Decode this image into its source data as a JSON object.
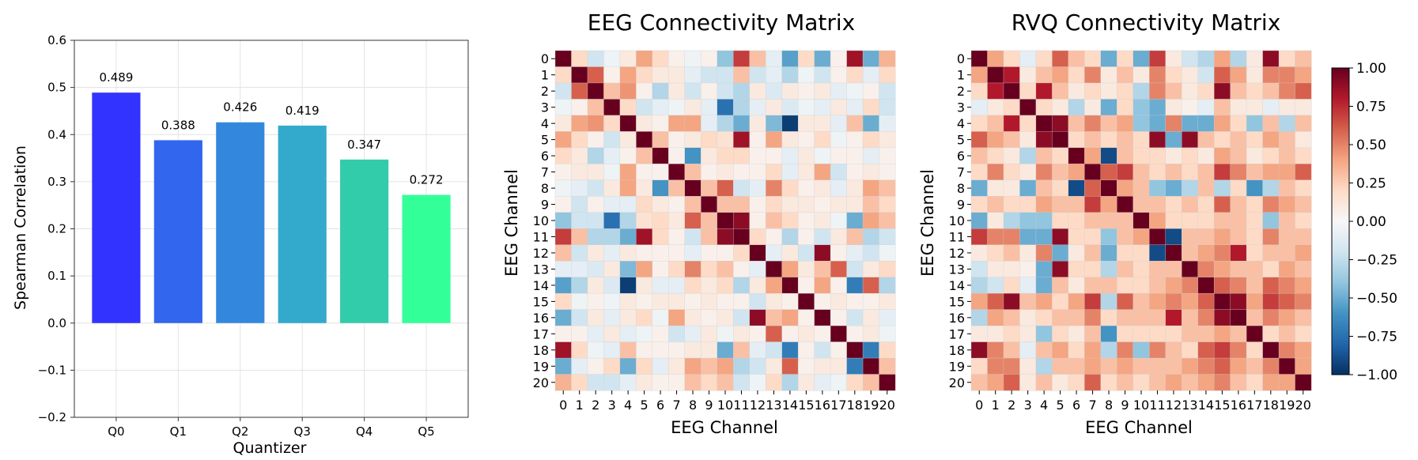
{
  "chart_data": [
    {
      "type": "bar",
      "title": "",
      "xlabel": "Quantizer",
      "ylabel": "Spearman Correlation",
      "categories": [
        "Q0",
        "Q1",
        "Q2",
        "Q3",
        "Q4",
        "Q5"
      ],
      "values": [
        0.489,
        0.388,
        0.426,
        0.419,
        0.347,
        0.272
      ],
      "value_labels": [
        "0.489",
        "0.388",
        "0.426",
        "0.419",
        "0.347",
        "0.272"
      ],
      "colors": [
        "#3333ff",
        "#3366ee",
        "#3388dd",
        "#33aacc",
        "#33ccaa",
        "#33ff99"
      ],
      "ylim": [
        -0.2,
        0.6
      ],
      "yticks": [
        -0.2,
        -0.1,
        0.0,
        0.1,
        0.2,
        0.3,
        0.4,
        0.5,
        0.6
      ],
      "ytick_labels": [
        "−0.2",
        "−0.1",
        "0.0",
        "0.1",
        "0.2",
        "0.3",
        "0.4",
        "0.5",
        "0.6"
      ],
      "grid": true
    },
    {
      "type": "heatmap",
      "title": "EEG Connectivity Matrix",
      "xlabel": "EEG Channel",
      "ylabel": "EEG Channel",
      "tick_labels": [
        "0",
        "1",
        "2",
        "3",
        "4",
        "5",
        "6",
        "7",
        "8",
        "9",
        "10",
        "11",
        "12",
        "13",
        "14",
        "15",
        "16",
        "17",
        "18",
        "19",
        "20"
      ],
      "vmin": -1.0,
      "vmax": 1.0,
      "matrix": [
        [
          1.0,
          0.2,
          -0.2,
          -0.05,
          0.1,
          0.4,
          0.2,
          0.05,
          -0.05,
          0.05,
          -0.4,
          0.7,
          0.3,
          -0.1,
          -0.55,
          0.2,
          -0.5,
          0.05,
          0.85,
          -0.5,
          0.35
        ],
        [
          0.2,
          1.0,
          0.6,
          0.05,
          0.4,
          0.2,
          0.1,
          0.1,
          -0.1,
          -0.2,
          -0.2,
          0.3,
          -0.2,
          -0.1,
          -0.3,
          -0.05,
          -0.2,
          0.05,
          0.2,
          -0.1,
          0.2
        ],
        [
          -0.2,
          0.6,
          1.0,
          0.3,
          0.45,
          0.05,
          -0.3,
          0.1,
          -0.2,
          0.05,
          -0.2,
          -0.3,
          0.1,
          -0.15,
          0.1,
          0.05,
          0.1,
          -0.1,
          -0.05,
          0.05,
          -0.2
        ],
        [
          -0.05,
          0.05,
          0.3,
          1.0,
          0.2,
          -0.2,
          -0.1,
          -0.05,
          0.1,
          -0.1,
          -0.75,
          -0.3,
          -0.1,
          0.1,
          -0.15,
          -0.05,
          -0.1,
          0.1,
          -0.1,
          0.2,
          -0.2
        ],
        [
          0.1,
          0.4,
          0.45,
          0.2,
          1.0,
          0.1,
          0.05,
          0.4,
          0.4,
          -0.1,
          -0.3,
          -0.5,
          0.1,
          -0.45,
          -0.95,
          0.1,
          0.1,
          -0.1,
          0.3,
          -0.5,
          -0.1
        ],
        [
          0.4,
          0.2,
          0.05,
          -0.2,
          0.1,
          1.0,
          0.3,
          0.05,
          0.1,
          0.2,
          0.15,
          0.85,
          0.05,
          0.4,
          0.1,
          0.05,
          0.2,
          -0.05,
          0.05,
          0.2,
          0.1
        ],
        [
          0.2,
          0.1,
          -0.3,
          -0.1,
          0.05,
          0.3,
          1.0,
          0.05,
          -0.6,
          0.1,
          0.2,
          0.2,
          0.05,
          0.05,
          -0.1,
          0.1,
          -0.05,
          0.05,
          0.05,
          -0.1,
          0.05
        ],
        [
          0.05,
          0.1,
          0.1,
          -0.05,
          0.4,
          0.05,
          0.05,
          1.0,
          0.3,
          0.05,
          0.1,
          0.05,
          0.05,
          0.2,
          -0.1,
          0.1,
          0.4,
          -0.2,
          0.05,
          0.1,
          0.05
        ],
        [
          -0.05,
          -0.1,
          -0.2,
          0.1,
          0.4,
          0.1,
          -0.6,
          0.3,
          1.0,
          0.3,
          0.6,
          -0.2,
          -0.1,
          0.5,
          0.2,
          0.05,
          0.1,
          -0.1,
          0.1,
          0.4,
          0.3
        ],
        [
          0.05,
          -0.2,
          0.05,
          -0.1,
          -0.1,
          0.2,
          0.1,
          0.05,
          0.3,
          1.0,
          0.3,
          0.3,
          0.05,
          0.2,
          0.1,
          0.1,
          0.05,
          0.1,
          0.1,
          0.3,
          0.2
        ],
        [
          -0.4,
          -0.2,
          -0.2,
          -0.75,
          -0.3,
          0.15,
          0.2,
          0.1,
          0.6,
          0.3,
          1.0,
          0.9,
          0.05,
          0.3,
          0.2,
          0.05,
          0.1,
          -0.05,
          -0.5,
          0.4,
          0.3
        ],
        [
          0.7,
          0.3,
          -0.3,
          -0.3,
          -0.5,
          0.85,
          0.2,
          0.05,
          -0.2,
          0.3,
          0.9,
          1.0,
          0.2,
          0.05,
          -0.3,
          0.05,
          -0.2,
          0.1,
          0.3,
          -0.3,
          -0.2
        ],
        [
          0.3,
          -0.2,
          0.1,
          -0.1,
          0.1,
          0.05,
          0.05,
          0.05,
          -0.1,
          0.05,
          0.05,
          0.2,
          1.0,
          -0.1,
          0.1,
          -0.2,
          0.9,
          0.05,
          -0.1,
          -0.2,
          -0.05
        ],
        [
          -0.1,
          -0.1,
          -0.15,
          0.1,
          -0.45,
          0.4,
          0.05,
          0.2,
          0.5,
          0.2,
          0.3,
          0.05,
          -0.1,
          1.0,
          0.4,
          0.1,
          0.3,
          0.6,
          -0.2,
          0.1,
          0.2
        ],
        [
          -0.55,
          -0.3,
          0.1,
          -0.15,
          -0.95,
          0.1,
          -0.1,
          -0.1,
          0.2,
          0.1,
          0.2,
          -0.3,
          0.1,
          0.4,
          1.0,
          0.05,
          0.4,
          0.05,
          -0.7,
          0.6,
          -0.3
        ],
        [
          0.2,
          -0.05,
          0.05,
          -0.05,
          0.1,
          0.05,
          0.1,
          0.1,
          0.05,
          0.1,
          0.05,
          0.05,
          -0.2,
          0.1,
          0.05,
          1.0,
          0.05,
          0.1,
          0.05,
          0.05,
          0.1
        ],
        [
          -0.5,
          -0.2,
          0.1,
          -0.1,
          0.1,
          0.2,
          -0.05,
          0.4,
          0.1,
          0.05,
          0.1,
          -0.2,
          0.9,
          0.3,
          0.4,
          0.05,
          1.0,
          0.05,
          -0.2,
          0.1,
          -0.1
        ],
        [
          0.05,
          0.05,
          -0.1,
          0.1,
          -0.1,
          -0.05,
          0.05,
          -0.2,
          -0.1,
          0.1,
          -0.05,
          0.1,
          0.05,
          0.6,
          0.05,
          0.1,
          0.05,
          1.0,
          0.05,
          0.1,
          -0.05
        ],
        [
          0.85,
          0.2,
          -0.05,
          -0.1,
          0.3,
          0.05,
          0.05,
          0.05,
          0.1,
          0.1,
          -0.5,
          0.3,
          -0.1,
          -0.2,
          -0.7,
          0.05,
          -0.2,
          0.05,
          1.0,
          -0.7,
          0.2
        ],
        [
          -0.5,
          -0.1,
          0.05,
          0.2,
          -0.5,
          0.2,
          -0.1,
          0.1,
          0.4,
          0.3,
          0.4,
          -0.3,
          -0.2,
          0.1,
          0.6,
          0.05,
          0.1,
          0.1,
          -0.7,
          1.0,
          0.3
        ],
        [
          0.35,
          0.2,
          -0.2,
          -0.2,
          -0.1,
          0.1,
          0.05,
          0.05,
          0.3,
          0.2,
          0.3,
          -0.2,
          -0.05,
          0.2,
          -0.3,
          0.1,
          -0.1,
          -0.05,
          0.2,
          0.3,
          1.0
        ]
      ]
    },
    {
      "type": "heatmap",
      "title": "RVQ Connectivity Matrix",
      "xlabel": "EEG Channel",
      "ylabel": "EEG Channel",
      "tick_labels": [
        "0",
        "1",
        "2",
        "3",
        "4",
        "5",
        "6",
        "7",
        "8",
        "9",
        "10",
        "11",
        "12",
        "13",
        "14",
        "15",
        "16",
        "17",
        "18",
        "19",
        "20"
      ],
      "vmin": -1.0,
      "vmax": 1.0,
      "matrix": [
        [
          1.0,
          0.4,
          0.2,
          -0.1,
          0.2,
          0.6,
          0.3,
          0.2,
          -0.5,
          0.2,
          -0.5,
          0.7,
          0.1,
          -0.2,
          -0.3,
          0.4,
          -0.3,
          0.1,
          0.9,
          0.2,
          0.3
        ],
        [
          0.4,
          1.0,
          0.8,
          0.1,
          0.3,
          0.4,
          0.2,
          0.5,
          0.1,
          0.3,
          0.1,
          0.5,
          0.2,
          0.1,
          -0.2,
          0.6,
          0.4,
          0.1,
          0.5,
          0.5,
          0.4
        ],
        [
          0.2,
          0.8,
          1.0,
          0.2,
          0.8,
          0.3,
          0.1,
          0.2,
          0.1,
          0.2,
          -0.3,
          0.5,
          0.3,
          0.1,
          0.2,
          0.9,
          0.3,
          0.2,
          0.3,
          0.5,
          0.6
        ],
        [
          -0.1,
          0.1,
          0.2,
          1.0,
          0.2,
          0.1,
          -0.3,
          0.1,
          -0.5,
          0.2,
          -0.4,
          -0.5,
          0.1,
          0.05,
          -0.1,
          0.3,
          0.1,
          0.1,
          -0.1,
          0.1,
          0.1
        ],
        [
          0.2,
          0.3,
          0.8,
          0.2,
          1.0,
          0.9,
          0.3,
          0.5,
          0.3,
          0.4,
          -0.4,
          -0.5,
          0.5,
          -0.5,
          -0.5,
          0.4,
          0.2,
          -0.4,
          0.3,
          -0.3,
          0.3
        ],
        [
          0.6,
          0.4,
          0.3,
          0.1,
          0.9,
          1.0,
          0.2,
          0.3,
          0.2,
          0.3,
          0.2,
          0.9,
          -0.5,
          0.9,
          0.3,
          0.2,
          0.3,
          0.2,
          0.4,
          0.3,
          0.1
        ],
        [
          0.3,
          0.2,
          0.1,
          -0.3,
          0.3,
          0.2,
          1.0,
          0.4,
          -0.9,
          0.3,
          0.2,
          0.2,
          0.1,
          0.2,
          0.1,
          0.4,
          0.3,
          0.1,
          0.2,
          0.3,
          0.2
        ],
        [
          0.2,
          0.5,
          0.2,
          0.1,
          0.5,
          0.3,
          0.4,
          1.0,
          0.6,
          0.7,
          0.3,
          0.2,
          0.3,
          0.2,
          0.3,
          0.7,
          0.5,
          0.3,
          0.4,
          0.4,
          0.6
        ],
        [
          -0.5,
          0.1,
          0.1,
          -0.5,
          0.3,
          0.2,
          -0.9,
          0.6,
          1.0,
          0.4,
          0.3,
          -0.4,
          -0.5,
          -0.3,
          0.3,
          -0.3,
          0.2,
          -0.6,
          -0.3,
          0.3,
          0.2
        ],
        [
          0.2,
          0.3,
          0.2,
          0.2,
          0.4,
          0.3,
          0.3,
          0.7,
          0.4,
          1.0,
          0.3,
          0.3,
          0.2,
          0.3,
          0.2,
          0.6,
          0.3,
          0.2,
          0.5,
          0.4,
          0.3
        ],
        [
          -0.5,
          0.1,
          -0.3,
          -0.4,
          -0.4,
          0.2,
          0.2,
          0.3,
          0.3,
          0.3,
          1.0,
          0.4,
          0.2,
          0.2,
          0.2,
          0.3,
          0.3,
          0.2,
          -0.4,
          0.3,
          0.2
        ],
        [
          0.7,
          0.5,
          0.5,
          -0.5,
          -0.5,
          0.9,
          0.2,
          0.2,
          -0.4,
          0.3,
          0.4,
          1.0,
          -0.9,
          0.3,
          0.3,
          0.4,
          0.3,
          0.2,
          0.5,
          0.3,
          0.3
        ],
        [
          0.1,
          0.2,
          0.3,
          0.1,
          0.5,
          -0.5,
          0.1,
          0.3,
          -0.5,
          0.2,
          0.2,
          -0.9,
          1.0,
          0.3,
          0.4,
          0.5,
          0.8,
          0.2,
          0.3,
          0.3,
          0.4
        ],
        [
          -0.2,
          0.1,
          0.1,
          0.05,
          -0.5,
          0.9,
          0.2,
          0.2,
          -0.3,
          0.3,
          0.2,
          0.3,
          0.3,
          1.0,
          0.5,
          0.4,
          0.3,
          0.3,
          0.2,
          0.4,
          0.3
        ],
        [
          -0.3,
          -0.2,
          0.2,
          -0.1,
          -0.5,
          0.3,
          0.1,
          0.3,
          0.3,
          0.2,
          0.2,
          0.3,
          0.4,
          0.5,
          1.0,
          0.6,
          0.5,
          0.3,
          0.6,
          0.5,
          0.4
        ],
        [
          0.4,
          0.6,
          0.9,
          0.3,
          0.4,
          0.2,
          0.4,
          0.7,
          -0.3,
          0.6,
          0.3,
          0.4,
          0.5,
          0.4,
          0.6,
          1.0,
          0.9,
          0.4,
          0.7,
          0.6,
          0.5
        ],
        [
          -0.3,
          0.4,
          0.3,
          0.1,
          0.2,
          0.3,
          0.3,
          0.5,
          0.2,
          0.3,
          0.3,
          0.3,
          0.8,
          0.3,
          0.5,
          0.9,
          1.0,
          0.3,
          0.5,
          0.4,
          0.3
        ],
        [
          0.1,
          0.1,
          0.2,
          0.1,
          -0.4,
          0.2,
          0.1,
          0.3,
          -0.6,
          0.2,
          0.2,
          0.2,
          0.2,
          0.3,
          0.3,
          0.4,
          0.3,
          1.0,
          0.2,
          0.3,
          0.2
        ],
        [
          0.9,
          0.5,
          0.3,
          -0.1,
          0.3,
          0.4,
          0.2,
          0.4,
          -0.3,
          0.5,
          -0.4,
          0.5,
          0.3,
          0.2,
          0.6,
          0.7,
          0.5,
          0.2,
          1.0,
          0.5,
          0.4
        ],
        [
          0.2,
          0.5,
          0.5,
          0.1,
          -0.3,
          0.3,
          0.3,
          0.4,
          0.3,
          0.4,
          0.3,
          0.3,
          0.3,
          0.4,
          0.5,
          0.6,
          0.4,
          0.3,
          0.5,
          1.0,
          0.4
        ],
        [
          0.3,
          0.4,
          0.6,
          0.1,
          0.3,
          0.1,
          0.2,
          0.6,
          0.2,
          0.3,
          0.2,
          0.3,
          0.4,
          0.3,
          0.4,
          0.5,
          0.3,
          0.2,
          0.4,
          0.4,
          1.0
        ]
      ]
    }
  ],
  "colorbar": {
    "ticks": [
      1.0,
      0.75,
      0.5,
      0.25,
      0.0,
      -0.25,
      -0.5,
      -0.75,
      -1.0
    ],
    "tick_labels": [
      "1.00",
      "0.75",
      "0.50",
      "0.25",
      "0.00",
      "−0.25",
      "−0.50",
      "−0.75",
      "−1.00"
    ],
    "colormap": [
      "#053061",
      "#2166ac",
      "#4393c3",
      "#92c5de",
      "#d1e5f0",
      "#f7f7f7",
      "#fddbc7",
      "#f4a582",
      "#d6604d",
      "#b2182b",
      "#67001f"
    ]
  }
}
